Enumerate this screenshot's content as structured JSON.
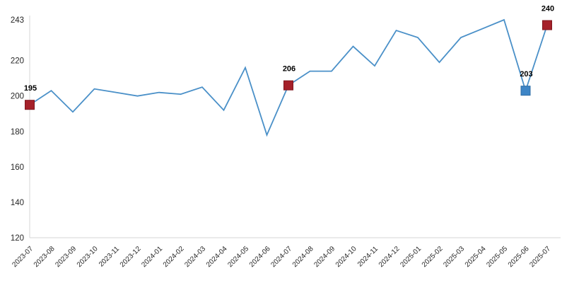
{
  "chart_data": {
    "type": "line",
    "title": "",
    "xlabel": "",
    "ylabel": "",
    "categories": [
      "2023-07",
      "2023-08",
      "2023-09",
      "2023-10",
      "2023-11",
      "2023-12",
      "2024-01",
      "2024-02",
      "2024-03",
      "2024-04",
      "2024-05",
      "2024-06",
      "2024-07",
      "2024-08",
      "2024-09",
      "2024-10",
      "2024-11",
      "2024-12",
      "2025-01",
      "2025-02",
      "2025-03",
      "2025-04",
      "2025-05",
      "2025-06",
      "2025-07"
    ],
    "series": [
      {
        "name": "value",
        "values": [
          195,
          203,
          191,
          204,
          202,
          200,
          202,
          201,
          205,
          192,
          216,
          178,
          206,
          214,
          214,
          228,
          217,
          237,
          233,
          219,
          233,
          238,
          243,
          203,
          240
        ]
      }
    ],
    "ylim": [
      120,
      243
    ],
    "yticks": [
      120,
      140,
      160,
      180,
      200,
      220,
      243
    ],
    "grid": false,
    "legend": false,
    "annotated_points": [
      {
        "category": "2023-07",
        "value": 195,
        "label": "195",
        "fill": "#a5212a",
        "stroke": "#7e161e"
      },
      {
        "category": "2024-07",
        "value": 206,
        "label": "206",
        "fill": "#a5212a",
        "stroke": "#7e161e"
      },
      {
        "category": "2025-06",
        "value": 203,
        "label": "203",
        "fill": "#3d85c6",
        "stroke": "#2e6da4"
      },
      {
        "category": "2025-07",
        "value": 240,
        "label": "240",
        "fill": "#a5212a",
        "stroke": "#7e161e"
      }
    ],
    "colors": {
      "line": "#4a90c8",
      "axis": "#d6d6d6",
      "tick_label": "#262626",
      "data_label": "#000000",
      "background": "#ffffff"
    }
  }
}
